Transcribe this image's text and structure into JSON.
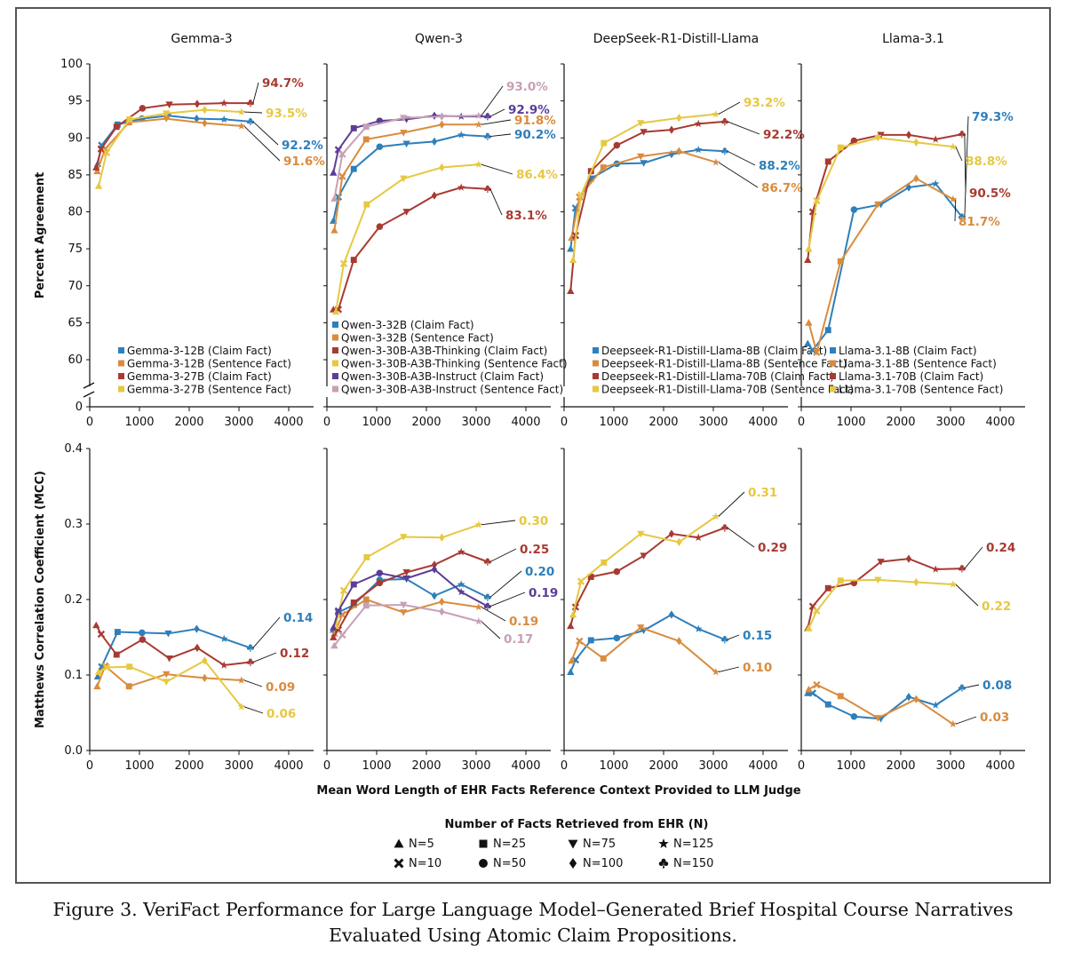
{
  "caption": {
    "line1": "Figure 3.  VeriFact Performance for Large Language Model–Generated Brief Hospital Course Narratives",
    "line2": "Evaluated Using Atomic Claim Propositions."
  },
  "colors": {
    "blue": "#2e7fba",
    "orange": "#d98c3e",
    "red": "#a83a32",
    "yellow": "#e6c842",
    "purple": "#5c3d96",
    "pink": "#c7a0b7"
  },
  "chart_data": {
    "type": "line",
    "xlabel": "Mean Word Length of EHR Facts Reference Context Provided to LLM Judge",
    "x_ticks": [
      "0",
      "1000",
      "2000",
      "3000",
      "4000"
    ],
    "xlim": [
      0,
      4500
    ],
    "top_row": {
      "ylabel": "Percent Agreement",
      "y_ticks": [
        "100",
        "95",
        "90",
        "85",
        "80",
        "75",
        "70",
        "65",
        "60",
        "0"
      ],
      "ylim": [
        58,
        100
      ],
      "axis_break": true
    },
    "bottom_row": {
      "ylabel": "Matthews Correlation Coefficient (MCC)",
      "y_ticks": [
        "0.4",
        "0.3",
        "0.2",
        "0.1",
        "0.0"
      ],
      "ylim": [
        0,
        0.4
      ]
    },
    "marker_legend": {
      "title": "Number of Facts Retrieved from EHR (N)",
      "items": [
        {
          "marker": "triangle",
          "label": "N=5"
        },
        {
          "marker": "square",
          "label": "N=25"
        },
        {
          "marker": "triangle-down",
          "label": "N=75"
        },
        {
          "marker": "star",
          "label": "N=125"
        },
        {
          "marker": "x",
          "label": "N=10"
        },
        {
          "marker": "circle",
          "label": "N=50"
        },
        {
          "marker": "diamond",
          "label": "N=100"
        },
        {
          "marker": "club",
          "label": "N=150"
        }
      ]
    },
    "marker_order": [
      "triangle",
      "x",
      "square",
      "circle",
      "triangle-down",
      "diamond",
      "star",
      "club"
    ],
    "panels": [
      {
        "title": "Gemma-3",
        "legend": [
          "Gemma-3-12B (Claim Fact)",
          "Gemma-3-12B (Sentence Fact)",
          "Gemma-3-27B (Claim Fact)",
          "Gemma-3-27B (Sentence Fact)"
        ],
        "series": [
          {
            "name": "Gemma-3-12B (Claim Fact)",
            "color": "blue",
            "x": [
              160,
              240,
              560,
              1050,
              1580,
              2150,
              2700,
              3230
            ],
            "acc": [
              86.5,
              89.0,
              91.8,
              92.6,
              93.0,
              92.6,
              92.5,
              92.2
            ],
            "acc_label": "92.2%",
            "mcc": [
              0.098,
              0.111,
              0.157,
              0.156,
              0.155,
              0.161,
              0.148,
              0.136
            ],
            "mcc_label": "0.14"
          },
          {
            "name": "Gemma-3-12B (Sentence Fact)",
            "color": "orange",
            "x": [
              150,
              310,
              790,
              1540,
              2310,
              3050
            ],
            "acc": [
              85.5,
              88.5,
              92.1,
              92.6,
              92.0,
              91.6
            ],
            "acc_label": "91.6%",
            "mcc": [
              0.085,
              0.112,
              0.085,
              0.101,
              0.096,
              0.093
            ],
            "mcc_label": "0.09"
          },
          {
            "name": "Gemma-3-27B (Claim Fact)",
            "color": "red",
            "x": [
              130,
              230,
              540,
              1060,
              1600,
              2160,
              2700,
              3230
            ],
            "acc": [
              86.0,
              88.5,
              91.5,
              94.0,
              94.5,
              94.6,
              94.7,
              94.7
            ],
            "acc_label": "94.7%",
            "mcc": [
              0.166,
              0.154,
              0.127,
              0.147,
              0.122,
              0.136,
              0.113,
              0.117
            ],
            "mcc_label": "0.12"
          },
          {
            "name": "Gemma-3-27B (Sentence Fact)",
            "color": "yellow",
            "x": [
              180,
              340,
              800,
              1540,
              2310,
              3050
            ],
            "acc": [
              83.5,
              88.0,
              92.5,
              93.3,
              93.8,
              93.5
            ],
            "acc_label": "93.5%",
            "mcc": [
              0.104,
              0.11,
              0.111,
              0.091,
              0.119,
              0.058
            ],
            "mcc_label": "0.06"
          }
        ]
      },
      {
        "title": "Qwen-3",
        "legend": [
          "Qwen-3-32B (Claim Fact)",
          "Qwen-3-32B (Sentence Fact)",
          "Qwen-3-30B-A3B-Thinking (Claim Fact)",
          "Qwen-3-30B-A3B-Thinking (Sentence Fact)",
          "Qwen-3-30B-A3B-Instruct (Claim Fact)",
          "Qwen-3-30B-A3B-Instruct (Sentence Fact)"
        ],
        "series": [
          {
            "name": "Qwen-3-32B (Claim Fact)",
            "color": "blue",
            "x": [
              130,
              230,
              540,
              1060,
              1600,
              2160,
              2700,
              3230
            ],
            "acc": [
              78.8,
              82.0,
              85.8,
              88.8,
              89.2,
              89.5,
              90.4,
              90.2
            ],
            "acc_label": "90.2%",
            "mcc": [
              0.16,
              0.183,
              0.193,
              0.226,
              0.227,
              0.205,
              0.22,
              0.203
            ],
            "mcc_label": "0.20"
          },
          {
            "name": "Qwen-3-32B (Sentence Fact)",
            "color": "orange",
            "x": [
              150,
              310,
              790,
              1540,
              2310,
              3050
            ],
            "acc": [
              77.5,
              84.8,
              89.8,
              90.7,
              91.8,
              91.8
            ],
            "acc_label": "91.8%",
            "mcc": [
              0.155,
              0.18,
              0.2,
              0.183,
              0.197,
              0.19
            ],
            "mcc_label": "0.19"
          },
          {
            "name": "Qwen-3-30B-A3B-Thinking (Claim Fact)",
            "color": "red",
            "x": [
              130,
              230,
              540,
              1060,
              1600,
              2160,
              2700,
              3230
            ],
            "acc": [
              66.8,
              66.8,
              73.5,
              78.0,
              80.0,
              82.2,
              83.3,
              83.1
            ],
            "acc_label": "83.1%",
            "mcc": [
              0.15,
              0.16,
              0.196,
              0.222,
              0.236,
              0.246,
              0.263,
              0.25
            ],
            "mcc_label": "0.25"
          },
          {
            "name": "Qwen-3-30B-A3B-Thinking (Sentence Fact)",
            "color": "yellow",
            "x": [
              180,
              340,
              800,
              1540,
              2310,
              3050
            ],
            "acc": [
              66.5,
              73.0,
              81.0,
              84.5,
              86.0,
              86.4
            ],
            "acc_label": "86.4%",
            "mcc": [
              0.165,
              0.212,
              0.256,
              0.283,
              0.282,
              0.299
            ],
            "mcc_label": "0.30"
          },
          {
            "name": "Qwen-3-30B-A3B-Instruct (Claim Fact)",
            "color": "purple",
            "x": [
              130,
              230,
              540,
              1060,
              1600,
              2160,
              2700,
              3230
            ],
            "acc": [
              85.3,
              88.4,
              91.3,
              92.3,
              92.5,
              93.0,
              92.9,
              92.9
            ],
            "acc_label": "92.9%",
            "mcc": [
              0.163,
              0.185,
              0.22,
              0.235,
              0.228,
              0.24,
              0.21,
              0.191
            ],
            "mcc_label": "0.19"
          },
          {
            "name": "Qwen-3-30B-A3B-Instruct (Sentence Fact)",
            "color": "pink",
            "x": [
              150,
              310,
              790,
              1540,
              2310,
              3050
            ],
            "acc": [
              81.8,
              87.8,
              91.5,
              92.7,
              92.9,
              93.0
            ],
            "acc_label": "93.0%",
            "mcc": [
              0.139,
              0.153,
              0.192,
              0.193,
              0.184,
              0.171
            ],
            "mcc_label": "0.17"
          }
        ]
      },
      {
        "title": "DeepSeek-R1-Distill-Llama",
        "legend": [
          "Deepseek-R1-Distill-Llama-8B (Claim Fact)",
          "Deepseek-R1-Distill-Llama-8B (Sentence Fact)",
          "Deepseek-R1-Distill-Llama-70B (Claim Fact)",
          "Deepseek-R1-Distill-Llama-70B (Sentence Fact)"
        ],
        "series": [
          {
            "name": "Deepseek-R1-Distill-Llama-8B (Claim Fact)",
            "color": "blue",
            "x": [
              130,
              230,
              540,
              1060,
              1600,
              2160,
              2700,
              3230
            ],
            "acc": [
              75.0,
              80.5,
              84.5,
              86.5,
              86.6,
              87.8,
              88.4,
              88.2
            ],
            "acc_label": "88.2%",
            "mcc": [
              0.104,
              0.12,
              0.146,
              0.149,
              0.159,
              0.18,
              0.161,
              0.147
            ],
            "mcc_label": "0.15"
          },
          {
            "name": "Deepseek-R1-Distill-Llama-8B (Sentence Fact)",
            "color": "orange",
            "x": [
              150,
              310,
              790,
              1540,
              2310,
              3050
            ],
            "acc": [
              76.5,
              82.0,
              86.0,
              87.5,
              88.2,
              86.7
            ],
            "acc_label": "86.7%",
            "mcc": [
              0.119,
              0.145,
              0.122,
              0.163,
              0.145,
              0.104
            ],
            "mcc_label": "0.10"
          },
          {
            "name": "Deepseek-R1-Distill-Llama-70B (Claim Fact)",
            "color": "red",
            "x": [
              130,
              230,
              540,
              1060,
              1600,
              2160,
              2700,
              3230
            ],
            "acc": [
              69.3,
              76.8,
              85.5,
              89.0,
              90.8,
              91.1,
              91.9,
              92.2
            ],
            "acc_label": "92.2%",
            "mcc": [
              0.165,
              0.19,
              0.23,
              0.237,
              0.258,
              0.287,
              0.282,
              0.295
            ],
            "mcc_label": "0.29"
          },
          {
            "name": "Deepseek-R1-Distill-Llama-70B (Sentence Fact)",
            "color": "yellow",
            "x": [
              180,
              340,
              800,
              1540,
              2310,
              3050
            ],
            "acc": [
              73.5,
              82.3,
              89.3,
              92.0,
              92.7,
              93.2
            ],
            "acc_label": "93.2%",
            "mcc": [
              0.18,
              0.224,
              0.249,
              0.287,
              0.276,
              0.31
            ],
            "mcc_label": "0.31"
          }
        ]
      },
      {
        "title": "Llama-3.1",
        "legend": [
          "Llama-3.1-8B (Claim Fact)",
          "Llama-3.1-8B (Sentence Fact)",
          "Llama-3.1-70B (Claim Fact)",
          "Llama-3.1-70B (Sentence Fact)"
        ],
        "series": [
          {
            "name": "Llama-3.1-8B (Claim Fact)",
            "color": "blue",
            "x": [
              130,
              230,
              540,
              1060,
              1600,
              2160,
              2700,
              3230
            ],
            "acc": [
              62.2,
              61.3,
              64.0,
              80.3,
              81.0,
              83.3,
              83.8,
              79.3
            ],
            "acc_label": "79.3%",
            "mcc": [
              0.076,
              0.076,
              0.061,
              0.045,
              0.042,
              0.071,
              0.06,
              0.083
            ],
            "mcc_label": "0.08"
          },
          {
            "name": "Llama-3.1-8B (Sentence Fact)",
            "color": "orange",
            "x": [
              150,
              310,
              790,
              1540,
              2310,
              3050
            ],
            "acc": [
              65.0,
              61.0,
              73.3,
              81.0,
              84.5,
              81.7
            ],
            "acc_label": "81.7%",
            "mcc": [
              0.081,
              0.087,
              0.072,
              0.043,
              0.068,
              0.035
            ],
            "mcc_label": "0.03"
          },
          {
            "name": "Llama-3.1-70B (Claim Fact)",
            "color": "red",
            "x": [
              130,
              230,
              540,
              1060,
              1600,
              2160,
              2700,
              3230
            ],
            "acc": [
              73.5,
              80.0,
              86.8,
              89.6,
              90.4,
              90.4,
              89.8,
              90.5
            ],
            "acc_label": "90.5%",
            "mcc": [
              0.162,
              0.191,
              0.215,
              0.222,
              0.25,
              0.254,
              0.24,
              0.241
            ],
            "mcc_label": "0.24"
          },
          {
            "name": "Llama-3.1-70B (Sentence Fact)",
            "color": "yellow",
            "x": [
              150,
              310,
              790,
              1540,
              2310,
              3050
            ],
            "acc": [
              75.0,
              81.5,
              88.7,
              90.0,
              89.4,
              88.8
            ],
            "acc_label": "88.8%",
            "mcc": [
              0.162,
              0.185,
              0.225,
              0.226,
              0.223,
              0.22
            ],
            "mcc_label": "0.22"
          }
        ]
      }
    ]
  }
}
